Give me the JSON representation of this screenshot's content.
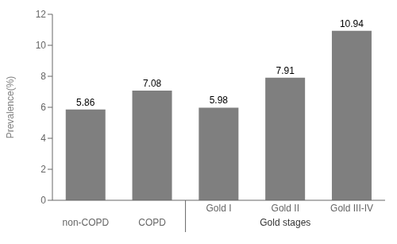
{
  "chart_data": {
    "type": "bar",
    "categories": [
      "non-COPD",
      "COPD",
      "Gold I",
      "Gold II",
      "Gold III-IV"
    ],
    "values": [
      5.86,
      7.08,
      5.98,
      7.91,
      10.94
    ],
    "color": "#7f7f7f",
    "ylabel": "Prevalence(%)",
    "ylim": [
      0,
      12
    ],
    "yticks": [
      0,
      2,
      4,
      6,
      8,
      10,
      12
    ],
    "data_labels": true,
    "grid": false,
    "annotations": [
      {
        "text": "Gold stages",
        "categories": [
          "Gold I",
          "Gold II",
          "Gold III-IV"
        ]
      }
    ]
  }
}
